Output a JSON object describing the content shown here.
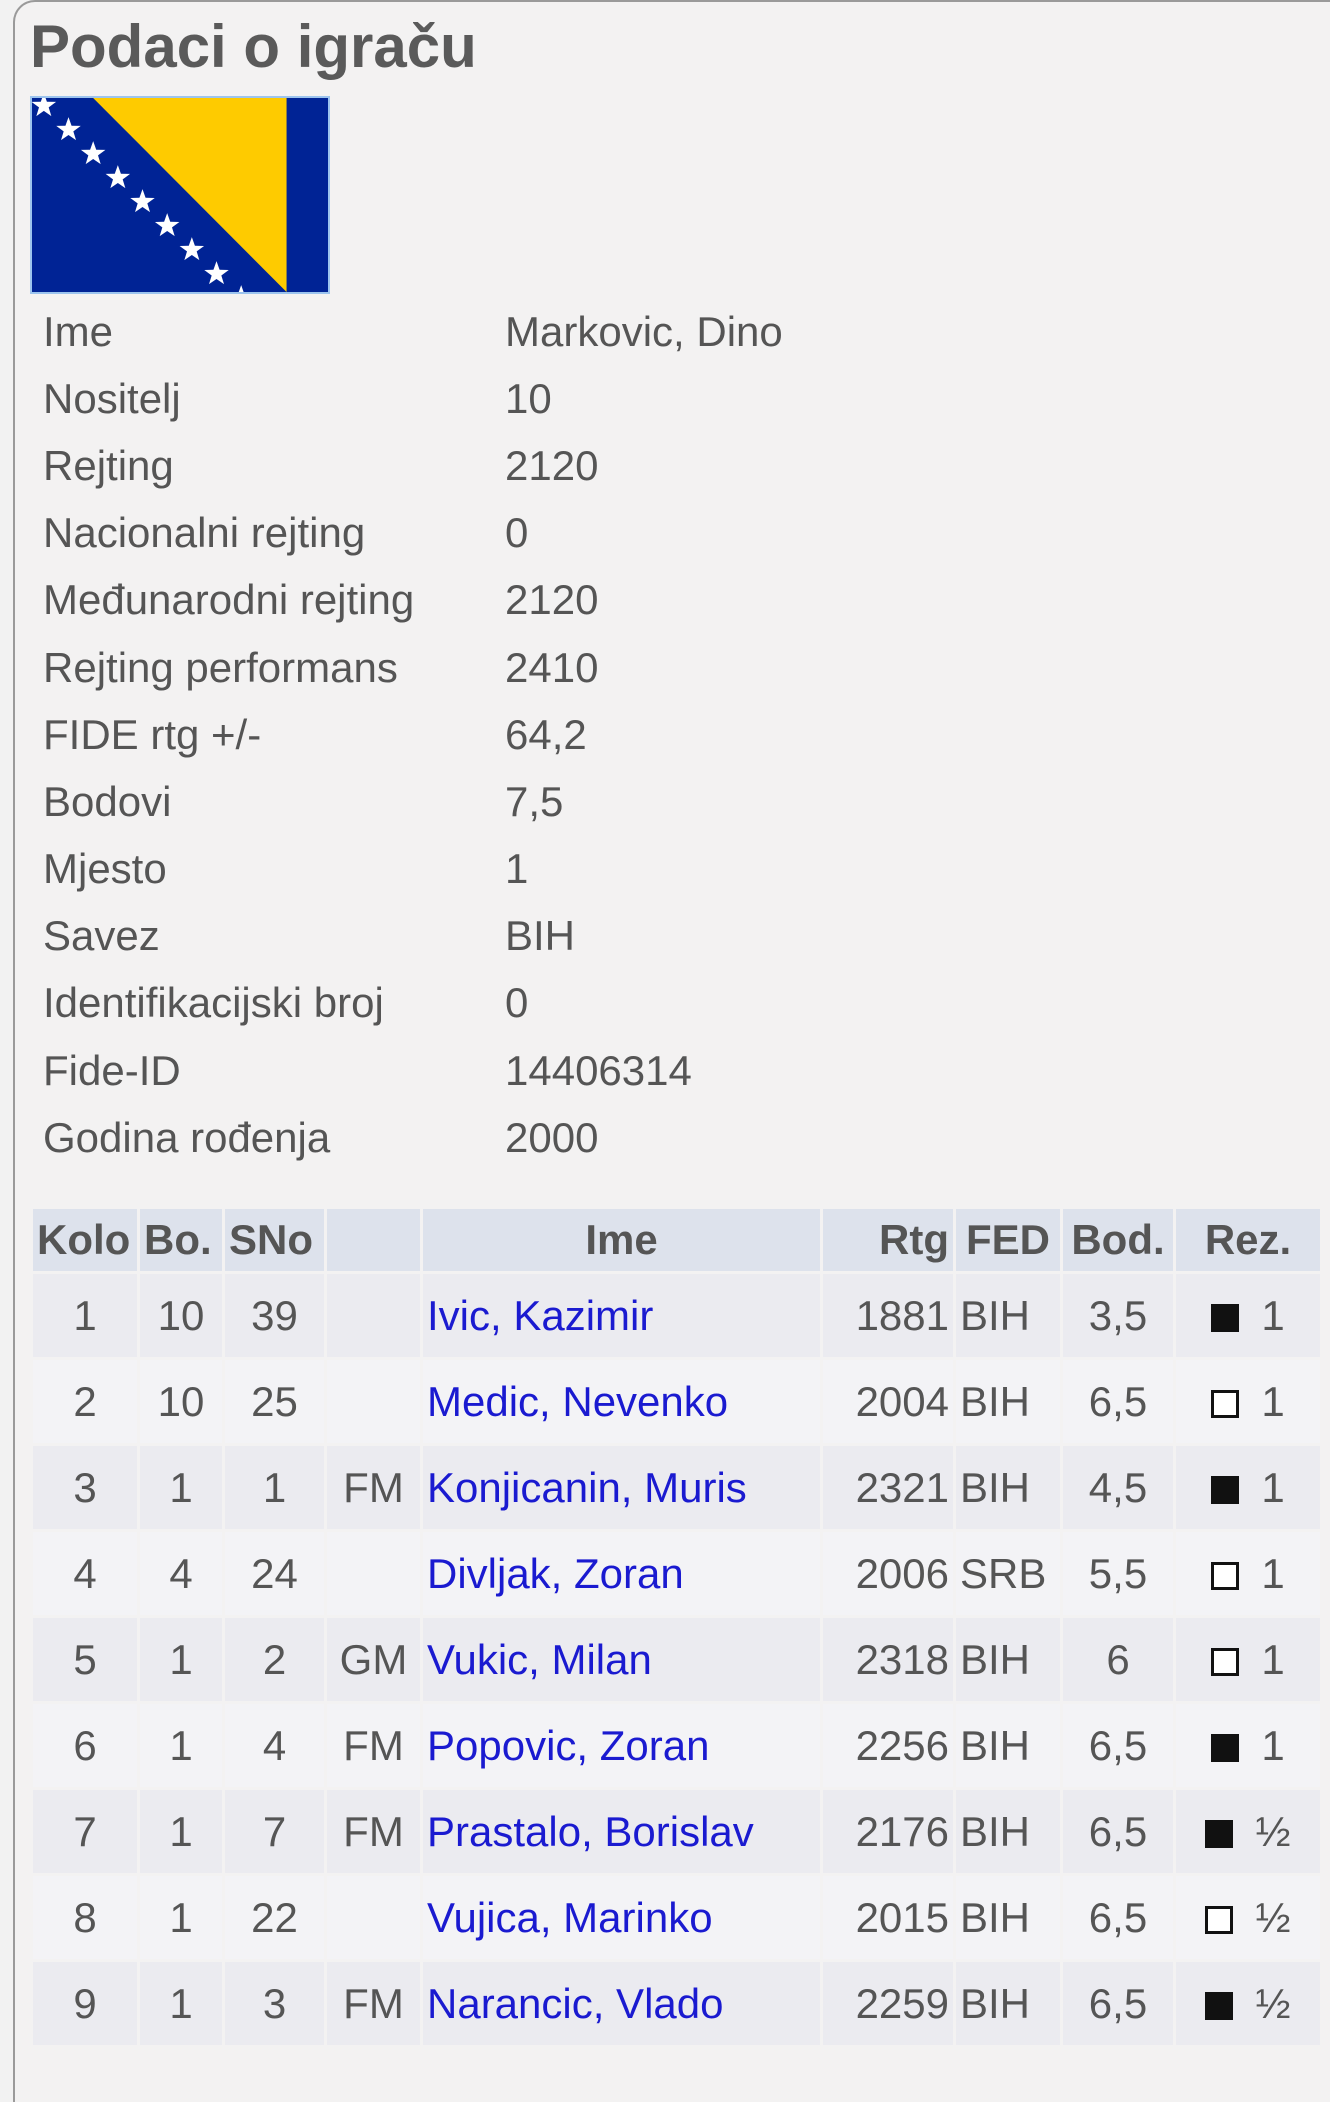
{
  "title": "Podaci o igraču",
  "flag": {
    "country": "BIH",
    "colors": {
      "blue": "#002395",
      "yellow": "#fecb00",
      "stars": "#ffffff"
    }
  },
  "info": [
    {
      "label": "Ime",
      "value": "Markovic, Dino"
    },
    {
      "label": "Nositelj",
      "value": "10"
    },
    {
      "label": "Rejting",
      "value": "2120"
    },
    {
      "label": "Nacionalni rejting",
      "value": "0"
    },
    {
      "label": "Međunarodni rejting",
      "value": "2120"
    },
    {
      "label": "Rejting performans",
      "value": "2410"
    },
    {
      "label": "FIDE rtg +/-",
      "value": "64,2"
    },
    {
      "label": "Bodovi",
      "value": "7,5"
    },
    {
      "label": "Mjesto",
      "value": "1"
    },
    {
      "label": "Savez",
      "value": "BIH"
    },
    {
      "label": "Identifikacijski broj",
      "value": "0"
    },
    {
      "label": "Fide-ID",
      "value": "14406314"
    },
    {
      "label": "Godina rođenja",
      "value": "2000"
    }
  ],
  "table": {
    "headers": [
      "Kolo",
      "Bo.",
      "SNo",
      "",
      "Ime",
      "Rtg",
      "FED",
      "Bod.",
      "Rez."
    ],
    "link_color": "#1a1ad0",
    "rows": [
      {
        "kolo": "1",
        "bo": "10",
        "sno": "39",
        "title": "",
        "name": "Ivic, Kazimir",
        "rtg": "1881",
        "fed": "BIH",
        "bod": "3,5",
        "color": "black",
        "rez": "1"
      },
      {
        "kolo": "2",
        "bo": "10",
        "sno": "25",
        "title": "",
        "name": "Medic, Nevenko",
        "rtg": "2004",
        "fed": "BIH",
        "bod": "6,5",
        "color": "white",
        "rez": "1"
      },
      {
        "kolo": "3",
        "bo": "1",
        "sno": "1",
        "title": "FM",
        "name": "Konjicanin, Muris",
        "rtg": "2321",
        "fed": "BIH",
        "bod": "4,5",
        "color": "black",
        "rez": "1"
      },
      {
        "kolo": "4",
        "bo": "4",
        "sno": "24",
        "title": "",
        "name": "Divljak, Zoran",
        "rtg": "2006",
        "fed": "SRB",
        "bod": "5,5",
        "color": "white",
        "rez": "1"
      },
      {
        "kolo": "5",
        "bo": "1",
        "sno": "2",
        "title": "GM",
        "name": "Vukic, Milan",
        "rtg": "2318",
        "fed": "BIH",
        "bod": "6",
        "color": "white",
        "rez": "1"
      },
      {
        "kolo": "6",
        "bo": "1",
        "sno": "4",
        "title": "FM",
        "name": "Popovic, Zoran",
        "rtg": "2256",
        "fed": "BIH",
        "bod": "6,5",
        "color": "black",
        "rez": "1"
      },
      {
        "kolo": "7",
        "bo": "1",
        "sno": "7",
        "title": "FM",
        "name": "Prastalo, Borislav",
        "rtg": "2176",
        "fed": "BIH",
        "bod": "6,5",
        "color": "black",
        "rez": "½"
      },
      {
        "kolo": "8",
        "bo": "1",
        "sno": "22",
        "title": "",
        "name": "Vujica, Marinko",
        "rtg": "2015",
        "fed": "BIH",
        "bod": "6,5",
        "color": "white",
        "rez": "½"
      },
      {
        "kolo": "9",
        "bo": "1",
        "sno": "3",
        "title": "FM",
        "name": "Narancic, Vlado",
        "rtg": "2259",
        "fed": "BIH",
        "bod": "6,5",
        "color": "black",
        "rez": "½"
      }
    ]
  }
}
